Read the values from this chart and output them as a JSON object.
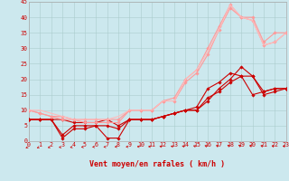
{
  "xlabel": "Vent moyen/en rafales ( km/h )",
  "bg_color": "#cce8ee",
  "grid_color": "#aacccc",
  "xlim": [
    0,
    23
  ],
  "ylim": [
    0,
    45
  ],
  "yticks": [
    0,
    5,
    10,
    15,
    20,
    25,
    30,
    35,
    40,
    45
  ],
  "xticks": [
    0,
    1,
    2,
    3,
    4,
    5,
    6,
    7,
    8,
    9,
    10,
    11,
    12,
    13,
    14,
    15,
    16,
    17,
    18,
    19,
    20,
    21,
    22,
    23
  ],
  "series": [
    {
      "x": [
        0,
        1,
        2,
        3,
        4,
        5,
        6,
        7,
        8,
        9,
        10,
        11,
        12,
        13,
        14,
        15,
        16,
        17,
        18,
        19,
        20,
        21,
        22,
        23
      ],
      "y": [
        7,
        7,
        7,
        2,
        5,
        5,
        5,
        5,
        4,
        7,
        7,
        7,
        8,
        9,
        10,
        10,
        14,
        16,
        19,
        21,
        15,
        16,
        17,
        17
      ],
      "color": "#cc0000",
      "lw": 0.8,
      "marker": "D",
      "ms": 1.8
    },
    {
      "x": [
        0,
        1,
        2,
        3,
        4,
        5,
        6,
        7,
        8,
        9,
        10,
        11,
        12,
        13,
        14,
        15,
        16,
        17,
        18,
        19,
        20,
        21,
        22,
        23
      ],
      "y": [
        7,
        7,
        7,
        1,
        4,
        4,
        5,
        1,
        1,
        7,
        7,
        7,
        8,
        9,
        10,
        10,
        13,
        17,
        20,
        24,
        21,
        16,
        17,
        17
      ],
      "color": "#cc0000",
      "lw": 0.8,
      "marker": "D",
      "ms": 1.8
    },
    {
      "x": [
        0,
        1,
        2,
        3,
        4,
        5,
        6,
        7,
        8,
        9,
        10,
        11,
        12,
        13,
        14,
        15,
        16,
        17,
        18,
        19,
        20,
        21,
        22,
        23
      ],
      "y": [
        7,
        7,
        7,
        7,
        6,
        6,
        6,
        7,
        5,
        7,
        7,
        7,
        8,
        9,
        10,
        11,
        17,
        19,
        22,
        21,
        21,
        15,
        16,
        17
      ],
      "color": "#cc0000",
      "lw": 0.8,
      "marker": "D",
      "ms": 1.8
    },
    {
      "x": [
        0,
        1,
        2,
        3,
        4,
        5,
        6,
        7,
        8,
        9,
        10,
        11,
        12,
        13,
        14,
        15,
        16,
        17,
        18,
        19,
        20,
        21,
        22,
        23
      ],
      "y": [
        10,
        9,
        8,
        8,
        7,
        7,
        7,
        7,
        7,
        10,
        10,
        10,
        13,
        14,
        20,
        23,
        30,
        37,
        44,
        40,
        40,
        32,
        35,
        35
      ],
      "color": "#ff9999",
      "lw": 0.8,
      "marker": "D",
      "ms": 1.8
    },
    {
      "x": [
        0,
        1,
        2,
        3,
        4,
        5,
        6,
        7,
        8,
        9,
        10,
        11,
        12,
        13,
        14,
        15,
        16,
        17,
        18,
        19,
        20,
        21,
        22,
        23
      ],
      "y": [
        10,
        9,
        8,
        7,
        7,
        6,
        6,
        6,
        6,
        10,
        10,
        10,
        13,
        13,
        19,
        22,
        28,
        36,
        43,
        40,
        39,
        31,
        32,
        35
      ],
      "color": "#ff9999",
      "lw": 0.8,
      "marker": "D",
      "ms": 1.8
    },
    {
      "x": [
        0,
        1,
        2,
        3,
        4,
        5,
        6,
        7,
        8,
        9,
        10,
        11,
        12,
        13,
        14,
        15,
        16,
        17,
        18,
        19,
        20,
        21,
        22,
        23
      ],
      "y": [
        10,
        10,
        9,
        8,
        7,
        7,
        7,
        7,
        8,
        10,
        10,
        10,
        13,
        13,
        20,
        23,
        29,
        36,
        44,
        40,
        39,
        31,
        32,
        35
      ],
      "color": "#ffbbbb",
      "lw": 0.8,
      "marker": null,
      "ms": 0
    }
  ],
  "arrow_color": "#cc0000",
  "label_fontsize": 6.0,
  "tick_fontsize": 4.8,
  "label_color": "#cc0000"
}
